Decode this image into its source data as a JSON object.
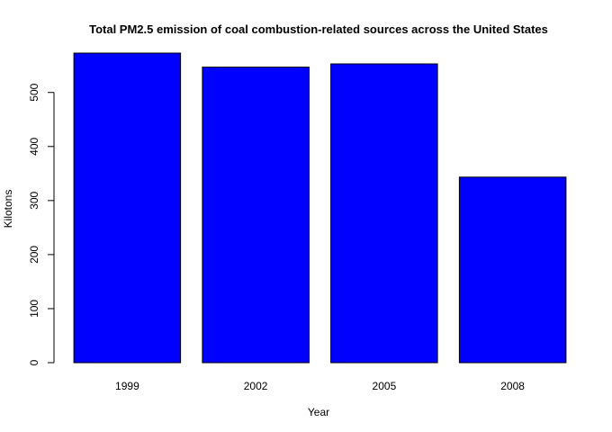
{
  "chart_data": {
    "type": "bar",
    "title": "Total PM2.5 emission of coal combustion-related sources across the United States",
    "xlabel": "Year",
    "ylabel": "Kilotons",
    "categories": [
      "1999",
      "2002",
      "2005",
      "2008"
    ],
    "values": [
      572.8,
      546.8,
      552.9,
      343.4
    ],
    "ylim": [
      0,
      572.8
    ],
    "yticks": [
      0,
      100,
      200,
      300,
      400,
      500
    ],
    "bar_color": "#0000ff",
    "bar_border_color": "#000000",
    "grid": false,
    "legend": "none"
  }
}
